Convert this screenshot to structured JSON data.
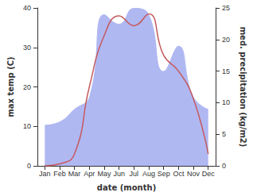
{
  "chart_data": {
    "type": "line",
    "xlabel": "date (month)",
    "ylabel": "max temp (C)",
    "y2label": "med. precipitation (kg/m2)",
    "categories": [
      "Jan",
      "Feb",
      "Mar",
      "Apr",
      "May",
      "Jun",
      "Jul",
      "Aug",
      "Sep",
      "Oct",
      "Nov",
      "Dec"
    ],
    "series": [
      {
        "type": "area",
        "axis": "y2",
        "color": "#b0b8f2",
        "values": [
          6.5,
          7,
          9,
          11,
          24,
          22.5,
          25,
          24,
          15,
          19,
          11,
          9
        ]
      },
      {
        "type": "line",
        "color": "#c45a5e",
        "values": [
          0,
          0.5,
          3,
          20,
          33,
          38,
          35.5,
          38.5,
          28,
          24,
          17,
          3
        ]
      }
    ],
    "ylim": [
      0,
      40
    ],
    "yticks": [
      0,
      10,
      20,
      30,
      40
    ],
    "y2lim": [
      0,
      25
    ],
    "y2ticks": [
      0,
      5,
      10,
      15,
      20,
      25
    ],
    "grid": false
  }
}
